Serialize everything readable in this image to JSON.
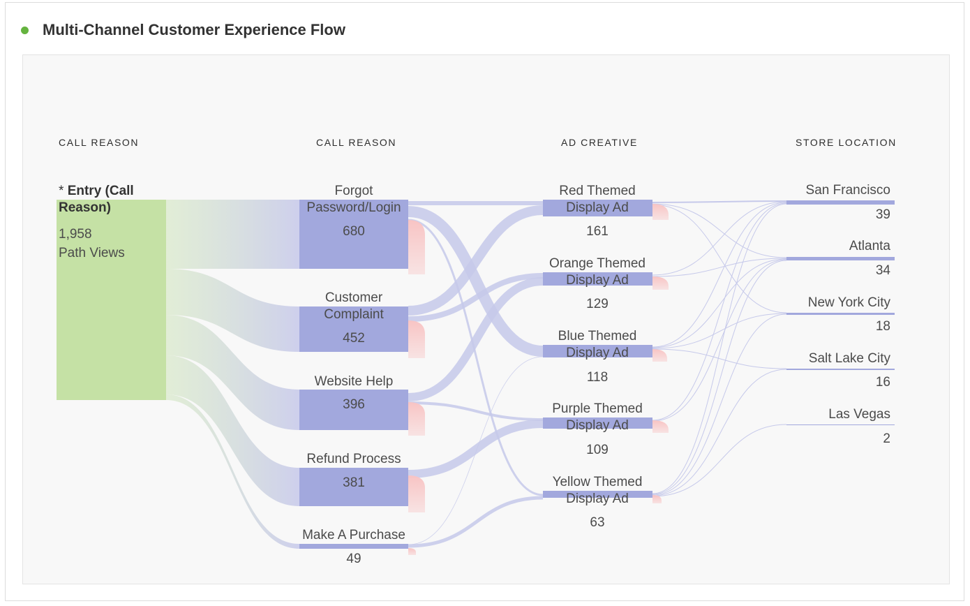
{
  "header": {
    "title": "Multi-Channel Customer Experience Flow",
    "status_color": "#65b33f"
  },
  "colors": {
    "entry_node": "#c5e1a5",
    "node": "#a2a8dd",
    "flow": "#c9cbeb",
    "exit": "#f8c9c9"
  },
  "columns": [
    "CALL REASON",
    "CALL REASON",
    "AD CREATIVE",
    "STORE LOCATION"
  ],
  "entry": {
    "prefix": "* ",
    "name_line1": "Entry (Call",
    "name_line2": "Reason)",
    "value": "1,958",
    "unit": "Path Views"
  },
  "call_reasons": [
    {
      "line1": "Forgot",
      "line2": "Password/Login",
      "value": "680"
    },
    {
      "line1": "Customer",
      "line2": "Complaint",
      "value": "452"
    },
    {
      "line1": "",
      "line2": "Website Help",
      "value": "396"
    },
    {
      "line1": "",
      "line2": "Refund Process",
      "value": "381"
    },
    {
      "line1": "",
      "line2": "Make A Purchase",
      "value": "49"
    }
  ],
  "ad_creatives": [
    {
      "line1": "Red Themed",
      "line2": "Display Ad",
      "value": "161"
    },
    {
      "line1": "Orange Themed",
      "line2": "Display Ad",
      "value": "129"
    },
    {
      "line1": "Blue Themed",
      "line2": "Display Ad",
      "value": "118"
    },
    {
      "line1": "Purple Themed",
      "line2": "Display Ad",
      "value": "109"
    },
    {
      "line1": "Yellow Themed",
      "line2": "Display Ad",
      "value": "63"
    }
  ],
  "stores": [
    {
      "name": "San Francisco",
      "value": "39"
    },
    {
      "name": "Atlanta",
      "value": "34"
    },
    {
      "name": "New York City",
      "value": "18"
    },
    {
      "name": "Salt Lake City",
      "value": "16"
    },
    {
      "name": "Las Vegas",
      "value": "2"
    }
  ]
}
